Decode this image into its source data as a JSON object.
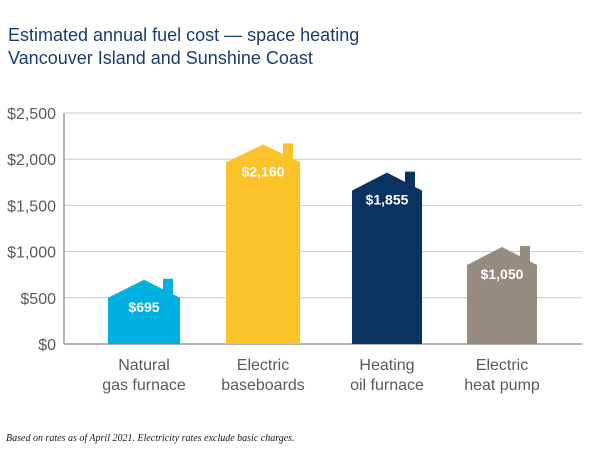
{
  "title_line1": "Estimated annual fuel cost — space heating",
  "title_line2": "Vancouver Island and Sunshine Coast",
  "footnote": "Based on rates as of April 2021. Electricity rates exclude basic charges.",
  "chart_data": {
    "type": "bar",
    "title": "Estimated annual fuel cost — space heating",
    "subtitle": "Vancouver Island and Sunshine Coast",
    "categories": [
      [
        "Natural",
        "gas furnace"
      ],
      [
        "Electric",
        "baseboards"
      ],
      [
        "Heating",
        "oil furnace"
      ],
      [
        "Electric",
        "heat pump"
      ]
    ],
    "values": [
      695,
      2160,
      1855,
      1050
    ],
    "data_labels": [
      "$695",
      "$2,160",
      "$1,855",
      "$1,050"
    ],
    "colors": [
      "#00b0e0",
      "#fcc22a",
      "#0b3361",
      "#948b81"
    ],
    "bar_shape": "house",
    "ylim": [
      0,
      2500
    ],
    "y_ticks": [
      0,
      500,
      1000,
      1500,
      2000,
      2500
    ],
    "y_tick_labels": [
      "$0",
      "$500",
      "$1,000",
      "$1,500",
      "$2,000",
      "$2,500"
    ],
    "grid": true,
    "xlabel": "",
    "ylabel": ""
  }
}
